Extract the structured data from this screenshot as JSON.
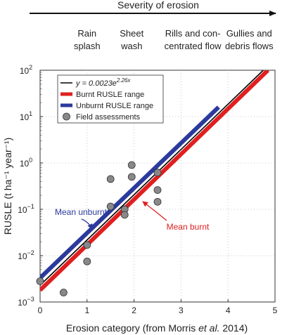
{
  "chart_data": {
    "type": "scatter",
    "header": {
      "title": "Severity of erosion",
      "categories": [
        {
          "x": 1.0,
          "lines": [
            "Rain",
            "splash"
          ]
        },
        {
          "x": 1.95,
          "lines": [
            "Sheet",
            "wash"
          ]
        },
        {
          "x": 3.25,
          "lines": [
            "Rills and con-",
            "centrated flow"
          ]
        },
        {
          "x": 4.45,
          "lines": [
            "Gullies and",
            "debris flows"
          ]
        }
      ]
    },
    "xlabel_prefix": "Erosion category (from Morris ",
    "xlabel_italic": "et al.",
    "xlabel_suffix": " 2014)",
    "ylabel": "RUSLE (t ha⁻¹ year⁻¹)",
    "xlim": [
      0,
      5
    ],
    "ylim": [
      0.001,
      100
    ],
    "yscale": "log",
    "xticks": [
      0,
      1,
      2,
      3,
      4,
      5
    ],
    "yticks": [
      0.001,
      0.01,
      0.1,
      1,
      10,
      100
    ],
    "ytick_labels": [
      {
        "base": "10",
        "exp": "−3"
      },
      {
        "base": "10",
        "exp": "−2"
      },
      {
        "base": "10",
        "exp": "−1"
      },
      {
        "base": "10",
        "exp": "0"
      },
      {
        "base": "10",
        "exp": "1"
      },
      {
        "base": "10",
        "exp": "2"
      }
    ],
    "grid": true,
    "legend_position": "top-left",
    "legend": [
      {
        "kind": "line-black",
        "label_prefix": "y = 0.0023e",
        "label_exp": "2.26x"
      },
      {
        "kind": "line-red",
        "label": "Burnt RUSLE range"
      },
      {
        "kind": "line-blue",
        "label": "Unburnt RUSLE range"
      },
      {
        "kind": "marker",
        "label": "Field assessments"
      }
    ],
    "series": [
      {
        "name": "Unburnt RUSLE range",
        "color": "#2b3a9c",
        "x": [
          0,
          3.8
        ],
        "y": [
          0.0033,
          16
        ]
      },
      {
        "name": "Burnt RUSLE range",
        "color": "#e02020",
        "x": [
          0,
          4.85
        ],
        "y": [
          0.0018,
          100
        ]
      },
      {
        "name": "y = 0.0023e^2.26x",
        "color": "#000000",
        "x": [
          0,
          4.75
        ],
        "y": [
          0.0023,
          100
        ]
      }
    ],
    "points": {
      "name": "Field assessments",
      "color": "#888888",
      "x": [
        0,
        0.5,
        1.0,
        1.0,
        1.5,
        1.5,
        1.8,
        1.8,
        1.95,
        1.95,
        2.5,
        2.5,
        2.5
      ],
      "y": [
        0.0028,
        0.0016,
        0.017,
        0.0075,
        0.45,
        0.115,
        0.1,
        0.076,
        0.9,
        0.5,
        0.62,
        0.26,
        0.145
      ]
    },
    "annotations": [
      {
        "text": "Mean unburnt",
        "color": "#2b3a9c"
      },
      {
        "text": "Mean burnt",
        "color": "#e02020"
      }
    ]
  }
}
